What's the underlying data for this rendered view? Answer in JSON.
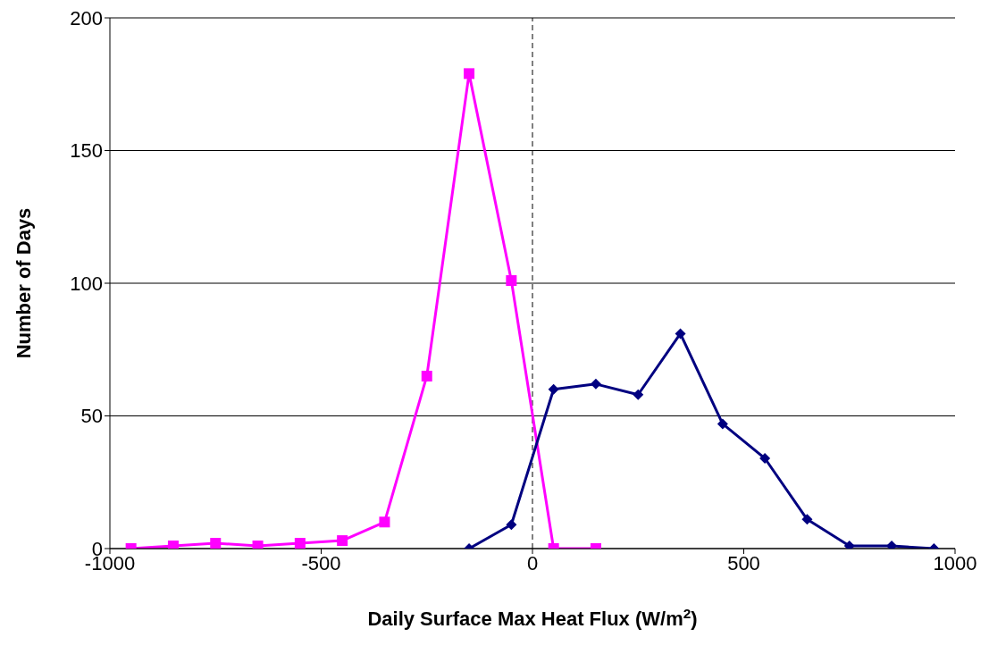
{
  "chart_data": {
    "type": "line",
    "xlabel": "Daily Surface Max Heat Flux (W/m$^{2}$)",
    "ylabel": "Number of Days",
    "xlim": [
      -1000,
      1000
    ],
    "xticks": [
      -1000,
      -500,
      0,
      500,
      1000
    ],
    "ylim": [
      0,
      200
    ],
    "yticks": [
      0,
      50,
      100,
      150,
      200
    ],
    "grid": "y",
    "ref_lines": [
      {
        "axis": "x",
        "value": 0,
        "color": "#000000",
        "line_style": "dashed"
      }
    ],
    "series": [
      {
        "color": "#ff00ff",
        "marker": "square",
        "x": [
          -950,
          -850,
          -750,
          -650,
          -550,
          -450,
          -350,
          -250,
          -150,
          -50,
          50,
          150
        ],
        "values": [
          0,
          1,
          2,
          1,
          2,
          3,
          10,
          65,
          179,
          101,
          0,
          0
        ]
      },
      {
        "color": "#000080",
        "marker": "diamond",
        "x": [
          -150,
          -50,
          50,
          150,
          250,
          350,
          450,
          550,
          650,
          750,
          850,
          950
        ],
        "values": [
          0,
          9,
          60,
          62,
          58,
          81,
          47,
          34,
          11,
          1,
          1,
          0
        ]
      }
    ]
  }
}
